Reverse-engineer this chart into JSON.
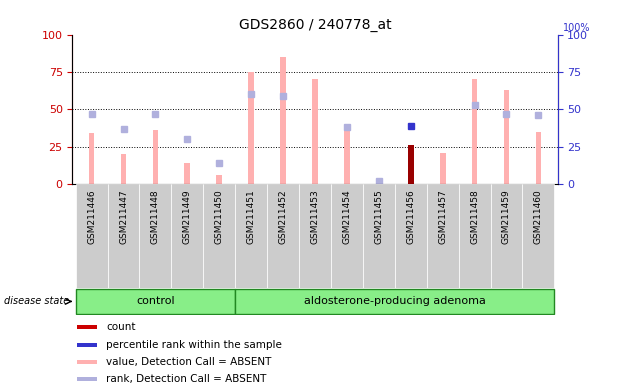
{
  "title": "GDS2860 / 240778_at",
  "samples": [
    "GSM211446",
    "GSM211447",
    "GSM211448",
    "GSM211449",
    "GSM211450",
    "GSM211451",
    "GSM211452",
    "GSM211453",
    "GSM211454",
    "GSM211455",
    "GSM211456",
    "GSM211457",
    "GSM211458",
    "GSM211459",
    "GSM211460"
  ],
  "control_count": 5,
  "adenoma_count": 10,
  "value_absent": [
    34,
    20,
    36,
    14,
    6,
    75,
    85,
    70,
    38,
    2,
    26,
    21,
    70,
    63,
    35
  ],
  "rank_absent": [
    47,
    37,
    47,
    30,
    14,
    60,
    59,
    null,
    38,
    2,
    null,
    null,
    53,
    47,
    46
  ],
  "count_bar": [
    null,
    null,
    null,
    null,
    null,
    null,
    null,
    null,
    null,
    null,
    26,
    null,
    null,
    null,
    null
  ],
  "percentile_rank_dot": [
    null,
    null,
    null,
    null,
    null,
    null,
    null,
    null,
    null,
    null,
    39,
    null,
    null,
    null,
    null
  ],
  "legend_items": [
    "count",
    "percentile rank within the sample",
    "value, Detection Call = ABSENT",
    "rank, Detection Call = ABSENT"
  ],
  "legend_colors": [
    "#cc0000",
    "#3333cc",
    "#ffb0b0",
    "#b0b0dd"
  ],
  "bar_color_value": "#ffb0b0",
  "bar_color_rank_dot": "#b0b0dd",
  "bar_color_count_special": "#990000",
  "dot_color_percentile": "#3333cc",
  "yticks": [
    0,
    25,
    50,
    75,
    100
  ],
  "group_label_control": "control",
  "group_label_adenoma": "aldosterone-producing adenoma",
  "disease_state_label": "disease state",
  "left_axis_color": "#cc0000",
  "right_axis_color": "#3333cc",
  "group_box_facecolor": "#88ee88",
  "group_box_edgecolor": "#228822",
  "xticklabel_bg": "#cccccc",
  "xticklabel_edge": "#ffffff"
}
